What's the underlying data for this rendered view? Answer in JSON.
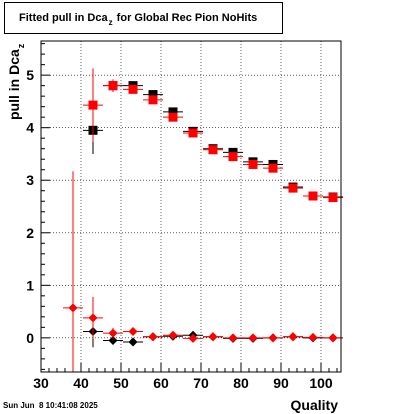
{
  "chart_data": {
    "type": "scatter",
    "title": {
      "main": "Fitted pull in Dca",
      "sub": "z",
      "rest": " for Global Rec Pion NoHits"
    },
    "xlabel": "Quality",
    "ylabel": {
      "main": "pull in Dca",
      "sub": "z"
    },
    "xlim": [
      30,
      105
    ],
    "ylim": [
      -0.65,
      5.65
    ],
    "xticks": [
      30,
      40,
      50,
      60,
      70,
      80,
      90,
      100
    ],
    "yticks": [
      0,
      1,
      2,
      3,
      4,
      5
    ],
    "grid": true,
    "series": [
      {
        "color": "#000000",
        "marker": "square",
        "points": [
          {
            "x": 43,
            "y": 3.95,
            "err": 0.45
          },
          {
            "x": 48,
            "y": 4.8,
            "err": 0.1
          },
          {
            "x": 53,
            "y": 4.8,
            "err": 0.05
          },
          {
            "x": 58,
            "y": 4.63,
            "err": 0.05
          },
          {
            "x": 63,
            "y": 4.3,
            "err": 0.04
          },
          {
            "x": 68,
            "y": 3.93,
            "err": 0.04
          },
          {
            "x": 73,
            "y": 3.6,
            "err": 0.04
          },
          {
            "x": 78,
            "y": 3.53,
            "err": 0.04
          },
          {
            "x": 83,
            "y": 3.35,
            "err": 0.04
          },
          {
            "x": 88,
            "y": 3.3,
            "err": 0.04
          },
          {
            "x": 93,
            "y": 2.87,
            "err": 0.04
          },
          {
            "x": 98,
            "y": 2.7,
            "err": 0.04
          },
          {
            "x": 103,
            "y": 2.68,
            "err": 0.04
          }
        ]
      },
      {
        "color": "#ff0000",
        "marker": "square",
        "points": [
          {
            "x": 43,
            "y": 4.43,
            "err": 0.7
          },
          {
            "x": 48,
            "y": 4.8,
            "err": 0.12
          },
          {
            "x": 53,
            "y": 4.73,
            "err": 0.06
          },
          {
            "x": 58,
            "y": 4.53,
            "err": 0.05
          },
          {
            "x": 63,
            "y": 4.2,
            "err": 0.05
          },
          {
            "x": 68,
            "y": 3.9,
            "err": 0.04
          },
          {
            "x": 73,
            "y": 3.58,
            "err": 0.04
          },
          {
            "x": 78,
            "y": 3.45,
            "err": 0.04
          },
          {
            "x": 83,
            "y": 3.3,
            "err": 0.04
          },
          {
            "x": 88,
            "y": 3.23,
            "err": 0.04
          },
          {
            "x": 93,
            "y": 2.85,
            "err": 0.04
          },
          {
            "x": 98,
            "y": 2.7,
            "err": 0.04
          },
          {
            "x": 103,
            "y": 2.67,
            "err": 0.04
          }
        ]
      },
      {
        "color": "#000000",
        "marker": "diamond",
        "points": [
          {
            "x": 43,
            "y": 0.12,
            "err": 0.3
          },
          {
            "x": 48,
            "y": -0.05,
            "err": 0.08
          },
          {
            "x": 53,
            "y": -0.08,
            "err": 0.04
          },
          {
            "x": 58,
            "y": 0.02,
            "err": 0.03
          },
          {
            "x": 63,
            "y": 0.03,
            "err": 0.03
          },
          {
            "x": 68,
            "y": 0.05,
            "err": 0.03
          },
          {
            "x": 73,
            "y": 0.02,
            "err": 0.03
          },
          {
            "x": 78,
            "y": -0.01,
            "err": 0.03
          },
          {
            "x": 83,
            "y": -0.01,
            "err": 0.03
          },
          {
            "x": 88,
            "y": 0.0,
            "err": 0.03
          },
          {
            "x": 93,
            "y": 0.02,
            "err": 0.03
          },
          {
            "x": 98,
            "y": 0.0,
            "err": 0.03
          },
          {
            "x": 103,
            "y": 0.0,
            "err": 0.03
          }
        ]
      },
      {
        "color": "#ff0000",
        "marker": "diamond",
        "points": [
          {
            "x": 38,
            "y": 0.57,
            "err": 2.6
          },
          {
            "x": 43,
            "y": 0.38,
            "err": 0.4
          },
          {
            "x": 48,
            "y": 0.09,
            "err": 0.1
          },
          {
            "x": 53,
            "y": 0.12,
            "err": 0.05
          },
          {
            "x": 58,
            "y": 0.02,
            "err": 0.04
          },
          {
            "x": 63,
            "y": 0.05,
            "err": 0.03
          },
          {
            "x": 68,
            "y": -0.01,
            "err": 0.03
          },
          {
            "x": 73,
            "y": 0.02,
            "err": 0.03
          },
          {
            "x": 78,
            "y": 0.0,
            "err": 0.03
          },
          {
            "x": 83,
            "y": 0.0,
            "err": 0.03
          },
          {
            "x": 88,
            "y": 0.0,
            "err": 0.03
          },
          {
            "x": 93,
            "y": 0.02,
            "err": 0.03
          },
          {
            "x": 98,
            "y": 0.01,
            "err": 0.03
          },
          {
            "x": 103,
            "y": 0.0,
            "err": 0.03
          }
        ]
      }
    ]
  },
  "timestamp": "Sun Jun  8 10:41:08 2025"
}
